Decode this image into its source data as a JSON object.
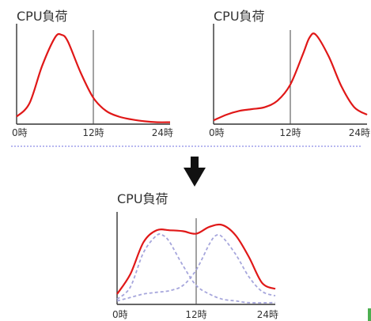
{
  "chart_data": [
    {
      "type": "line",
      "title": "CPU負荷",
      "x_ticks": [
        "0時",
        "12時",
        "24時"
      ],
      "xlim": [
        0,
        24
      ],
      "ylim": [
        0,
        1
      ],
      "marker_x": 12,
      "series": [
        {
          "values": [
            [
              0,
              0.08
            ],
            [
              2,
              0.22
            ],
            [
              4,
              0.62
            ],
            [
              6,
              0.92
            ],
            [
              7,
              0.95
            ],
            [
              8,
              0.88
            ],
            [
              10,
              0.55
            ],
            [
              12,
              0.28
            ],
            [
              14,
              0.14
            ],
            [
              16,
              0.08
            ],
            [
              18,
              0.05
            ],
            [
              20,
              0.03
            ],
            [
              22,
              0.02
            ],
            [
              24,
              0.02
            ]
          ]
        }
      ]
    },
    {
      "type": "line",
      "title": "CPU負荷",
      "x_ticks": [
        "0時",
        "12時",
        "24時"
      ],
      "xlim": [
        0,
        24
      ],
      "ylim": [
        0,
        1
      ],
      "marker_x": 12,
      "series": [
        {
          "values": [
            [
              0,
              0.04
            ],
            [
              2,
              0.1
            ],
            [
              4,
              0.14
            ],
            [
              6,
              0.16
            ],
            [
              8,
              0.18
            ],
            [
              10,
              0.25
            ],
            [
              12,
              0.42
            ],
            [
              14,
              0.75
            ],
            [
              15,
              0.92
            ],
            [
              16,
              0.95
            ],
            [
              18,
              0.72
            ],
            [
              20,
              0.4
            ],
            [
              22,
              0.18
            ],
            [
              24,
              0.1
            ]
          ]
        }
      ]
    },
    {
      "type": "line",
      "title": "CPU負荷",
      "x_ticks": [
        "0時",
        "12時",
        "24時"
      ],
      "xlim": [
        0,
        24
      ],
      "ylim": [
        0,
        1
      ],
      "marker_x": 12,
      "series": [
        {
          "style": "total",
          "values": [
            [
              0,
              0.12
            ],
            [
              2,
              0.35
            ],
            [
              4,
              0.72
            ],
            [
              6,
              0.86
            ],
            [
              8,
              0.86
            ],
            [
              10,
              0.85
            ],
            [
              12,
              0.82
            ],
            [
              14,
              0.9
            ],
            [
              16,
              0.92
            ],
            [
              18,
              0.8
            ],
            [
              20,
              0.55
            ],
            [
              22,
              0.25
            ],
            [
              24,
              0.18
            ]
          ]
        },
        {
          "style": "component",
          "values": [
            [
              0,
              0.06
            ],
            [
              2,
              0.2
            ],
            [
              4,
              0.6
            ],
            [
              6,
              0.8
            ],
            [
              7,
              0.8
            ],
            [
              8,
              0.72
            ],
            [
              10,
              0.45
            ],
            [
              12,
              0.22
            ],
            [
              14,
              0.12
            ],
            [
              16,
              0.06
            ],
            [
              18,
              0.04
            ],
            [
              20,
              0.02
            ],
            [
              24,
              0.02
            ]
          ]
        },
        {
          "style": "component",
          "values": [
            [
              0,
              0.04
            ],
            [
              2,
              0.08
            ],
            [
              4,
              0.12
            ],
            [
              6,
              0.14
            ],
            [
              8,
              0.16
            ],
            [
              10,
              0.22
            ],
            [
              12,
              0.4
            ],
            [
              14,
              0.7
            ],
            [
              15,
              0.8
            ],
            [
              16,
              0.78
            ],
            [
              18,
              0.58
            ],
            [
              20,
              0.32
            ],
            [
              22,
              0.15
            ],
            [
              24,
              0.1
            ]
          ]
        }
      ]
    }
  ],
  "colors": {
    "total": "#e01818",
    "component": "#a6a6dc",
    "axis": "#333333",
    "separator": "#8e8ee6"
  },
  "icons": {
    "transition": "down-arrow-icon"
  }
}
